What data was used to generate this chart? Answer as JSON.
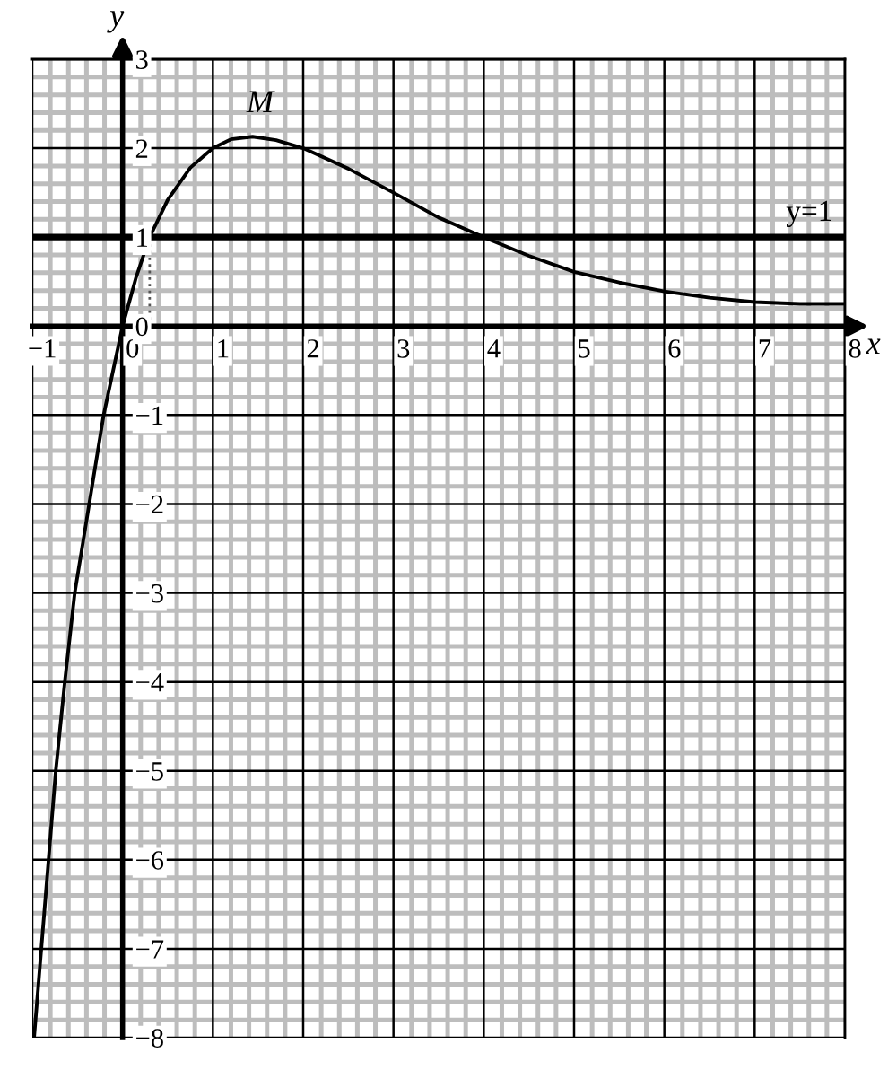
{
  "chart_data": {
    "type": "line",
    "xlabel": "x",
    "ylabel": "y",
    "xlim": [
      -1,
      8
    ],
    "ylim": [
      -8,
      3
    ],
    "xticks": [
      {
        "value": -1,
        "label": "−1"
      },
      0,
      1,
      2,
      3,
      4,
      5,
      6,
      7,
      8
    ],
    "yticks": [
      {
        "value": -8,
        "label": "−8"
      },
      {
        "value": -7,
        "label": "−7"
      },
      {
        "value": -6,
        "label": "−6"
      },
      {
        "value": -5,
        "label": "−5"
      },
      {
        "value": -4,
        "label": "−4"
      },
      {
        "value": -3,
        "label": "−3"
      },
      {
        "value": -2,
        "label": "−2"
      },
      {
        "value": -1,
        "label": "−1"
      },
      0,
      1,
      2,
      3
    ],
    "grid": true,
    "series": [
      {
        "color": "#000000",
        "x": [
          -0.98,
          -0.9,
          -0.82,
          -0.74,
          -0.64,
          -0.53,
          -0.37,
          -0.21,
          0,
          0.15,
          0.3,
          0.5,
          0.75,
          1,
          1.2,
          1.44,
          1.7,
          2,
          2.5,
          3,
          3.5,
          4,
          4.5,
          5,
          5.5,
          6,
          6.5,
          7,
          7.5,
          8
        ],
        "values": [
          -8,
          -7,
          -6,
          -5,
          -4,
          -3,
          -2,
          -1,
          0,
          0.55,
          1,
          1.42,
          1.78,
          2,
          2.1,
          2.13,
          2.09,
          2,
          1.77,
          1.5,
          1.22,
          1,
          0.79,
          0.61,
          0.49,
          0.39,
          0.32,
          0.27,
          0.25,
          0.25
        ]
      },
      {
        "color": "#555555",
        "x": [
          0.3,
          0.3
        ],
        "values": [
          0,
          1
        ],
        "line_style": "dotted"
      }
    ],
    "ref_lines": [
      {
        "axis": "y",
        "value": 1,
        "label": "y=1",
        "color": "#000000"
      }
    ],
    "annotations": [
      {
        "text": "M",
        "x": 1.44,
        "y": 2.13
      }
    ]
  }
}
